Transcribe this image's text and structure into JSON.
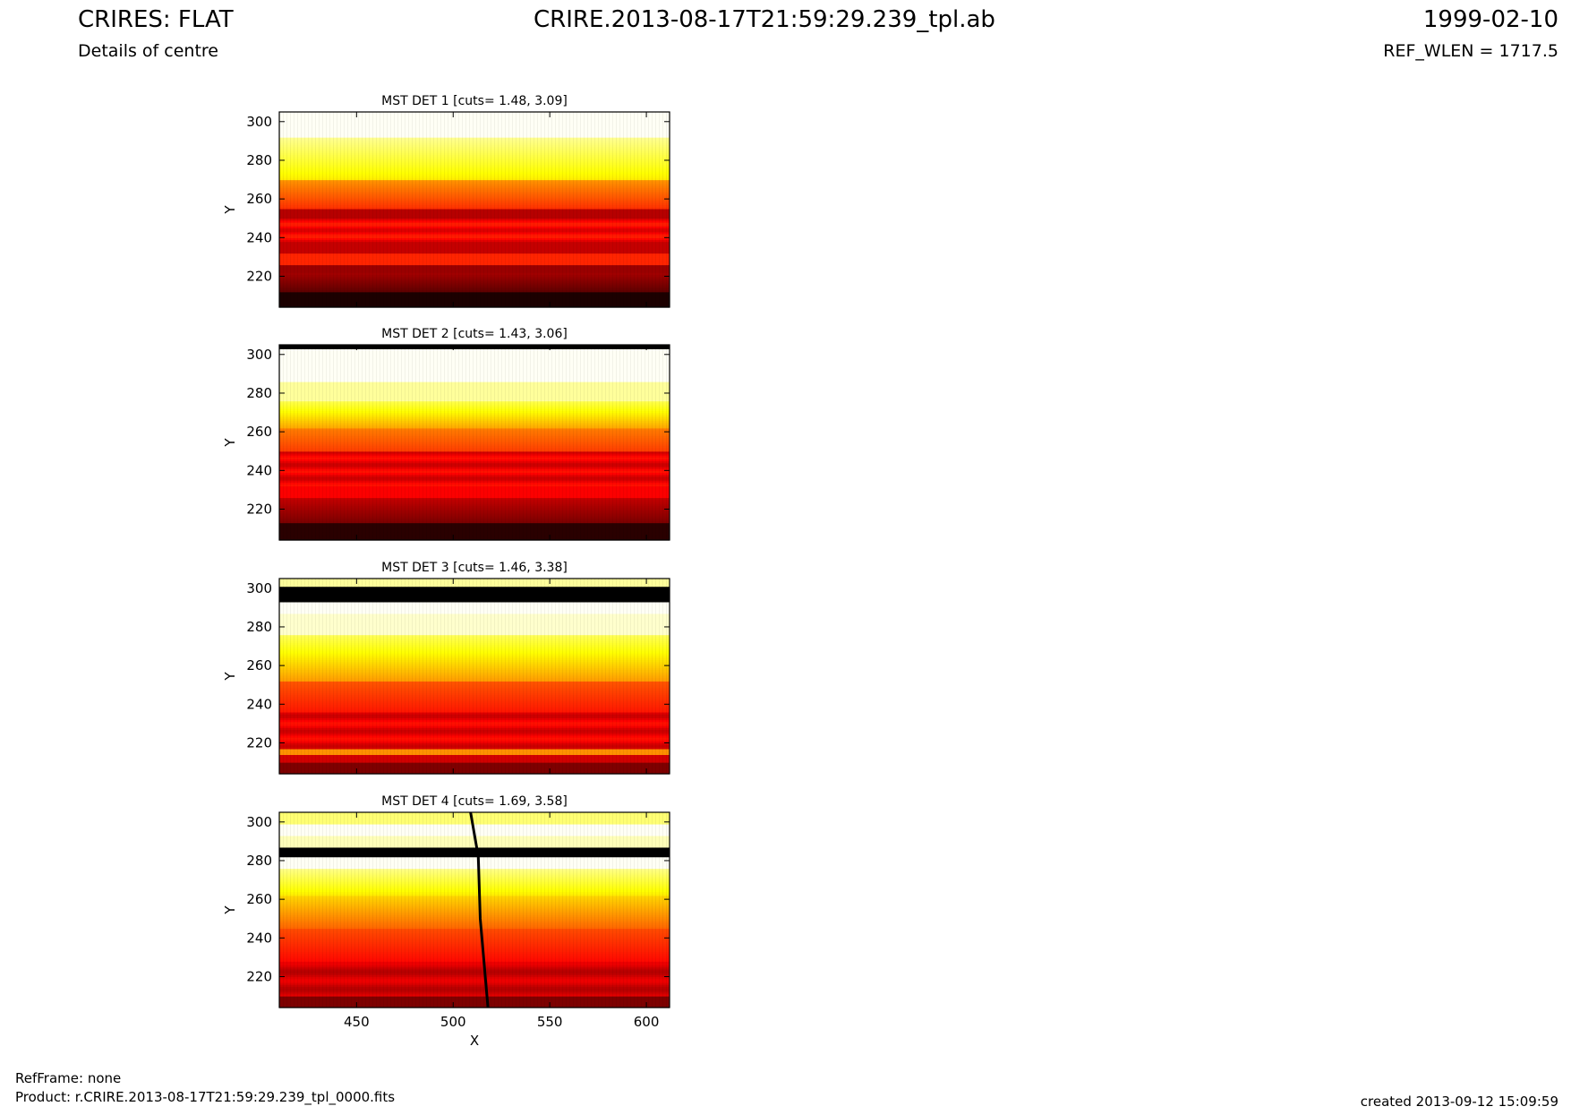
{
  "header": {
    "title_left": "CRIRES: FLAT",
    "title_center": "CRIRE.2013-08-17T21:59:29.239_tpl.ab",
    "title_right": "1999-02-10",
    "subtitle_left": "Details of centre",
    "subtitle_right": "REF_WLEN = 1717.5"
  },
  "footer": {
    "refframe": "RefFrame: none",
    "product": "Product: r.CRIRE.2013-08-17T21:59:29.239_tpl_0000.fits",
    "created": "created 2013-09-12 15:09:59"
  },
  "chart_data": [
    {
      "type": "heatmap",
      "title": "MST DET 1 [cuts= 1.48, 3.09]",
      "xlabel": "",
      "ylabel": "Y",
      "xlim": [
        410,
        612
      ],
      "ylim": [
        204,
        305
      ],
      "xticks": [],
      "yticks": [
        220,
        240,
        260,
        280,
        300
      ],
      "colormap": "hot"
    },
    {
      "type": "heatmap",
      "title": "MST DET 2 [cuts= 1.43, 3.06]",
      "xlabel": "",
      "ylabel": "Y",
      "xlim": [
        410,
        612
      ],
      "ylim": [
        204,
        305
      ],
      "xticks": [],
      "yticks": [
        220,
        240,
        260,
        280,
        300
      ],
      "colormap": "hot"
    },
    {
      "type": "heatmap",
      "title": "MST DET 3 [cuts= 1.46, 3.38]",
      "xlabel": "",
      "ylabel": "Y",
      "xlim": [
        410,
        612
      ],
      "ylim": [
        204,
        305
      ],
      "xticks": [],
      "yticks": [
        220,
        240,
        260,
        280,
        300
      ],
      "colormap": "hot"
    },
    {
      "type": "heatmap",
      "title": "MST DET 4 [cuts= 1.69, 3.58]",
      "xlabel": "X",
      "ylabel": "Y",
      "xlim": [
        410,
        612
      ],
      "ylim": [
        204,
        305
      ],
      "xticks": [
        450,
        500,
        550,
        600
      ],
      "yticks": [
        220,
        240,
        260,
        280,
        300
      ],
      "colormap": "hot"
    }
  ]
}
